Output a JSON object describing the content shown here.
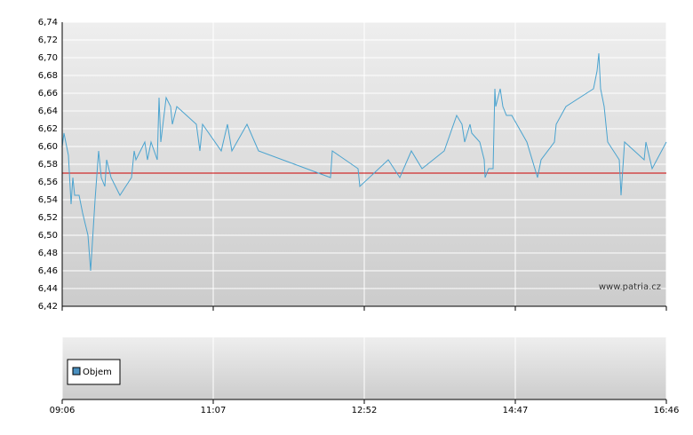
{
  "chart_data": {
    "type": "line",
    "watermark": "www.patria.cz",
    "x": [
      0,
      2,
      7,
      10,
      12,
      14,
      19,
      23,
      29,
      32,
      37,
      41,
      44,
      48,
      50,
      55,
      65,
      78,
      81,
      83,
      93,
      96,
      100,
      107,
      109,
      111,
      117,
      122,
      124,
      129,
      151,
      155,
      158,
      179,
      186,
      191,
      208,
      221,
      302,
      304,
      333,
      335,
      367,
      380,
      393,
      405,
      430,
      444,
      450,
      453,
      459,
      461,
      470,
      475,
      476,
      480,
      485,
      487,
      488,
      493,
      496,
      500,
      506,
      523,
      535,
      539,
      554,
      556,
      567,
      598,
      602,
      604,
      606,
      610,
      614,
      627,
      629,
      633,
      655,
      657,
      664,
      680
    ],
    "series": [
      {
        "color": "#4aa3cf",
        "values": [
          6.6,
          6.615,
          6.59,
          6.535,
          6.565,
          6.545,
          6.545,
          6.525,
          6.5,
          6.46,
          6.54,
          6.595,
          6.565,
          6.555,
          6.585,
          6.565,
          6.545,
          6.565,
          6.595,
          6.585,
          6.605,
          6.585,
          6.605,
          6.585,
          6.655,
          6.605,
          6.655,
          6.645,
          6.625,
          6.645,
          6.625,
          6.595,
          6.625,
          6.595,
          6.625,
          6.595,
          6.625,
          6.595,
          6.565,
          6.595,
          6.575,
          6.555,
          6.585,
          6.565,
          6.595,
          6.575,
          6.595,
          6.635,
          6.625,
          6.605,
          6.625,
          6.615,
          6.605,
          6.585,
          6.565,
          6.575,
          6.575,
          6.665,
          6.645,
          6.665,
          6.645,
          6.635,
          6.635,
          6.605,
          6.565,
          6.585,
          6.605,
          6.625,
          6.645,
          6.665,
          6.685,
          6.705,
          6.665,
          6.645,
          6.605,
          6.585,
          6.545,
          6.605,
          6.585,
          6.605,
          6.575,
          6.605
        ]
      }
    ],
    "reference_line": {
      "value": 6.57,
      "color": "#cc0000"
    },
    "xlim": [
      0,
      680
    ],
    "xticks": [
      {
        "value": 0,
        "label": "09:06"
      },
      {
        "value": 170,
        "label": "11:07"
      },
      {
        "value": 340,
        "label": "12:52"
      },
      {
        "value": 510,
        "label": "14:47"
      },
      {
        "value": 680,
        "label": "16:46"
      }
    ],
    "ylim": [
      6.42,
      6.74
    ],
    "yticks": [
      {
        "value": 6.42,
        "label": "6,42"
      },
      {
        "value": 6.44,
        "label": "6,44"
      },
      {
        "value": 6.46,
        "label": "6,46"
      },
      {
        "value": 6.48,
        "label": "6,48"
      },
      {
        "value": 6.5,
        "label": "6,50"
      },
      {
        "value": 6.52,
        "label": "6,52"
      },
      {
        "value": 6.54,
        "label": "6,54"
      },
      {
        "value": 6.56,
        "label": "6,56"
      },
      {
        "value": 6.58,
        "label": "6,58"
      },
      {
        "value": 6.6,
        "label": "6,60"
      },
      {
        "value": 6.62,
        "label": "6,62"
      },
      {
        "value": 6.64,
        "label": "6,64"
      },
      {
        "value": 6.66,
        "label": "6,66"
      },
      {
        "value": 6.68,
        "label": "6,68"
      },
      {
        "value": 6.7,
        "label": "6,70"
      },
      {
        "value": 6.72,
        "label": "6,72"
      },
      {
        "value": 6.74,
        "label": "6,74"
      }
    ],
    "grid": true,
    "volume_panel": {
      "legend": "Objem",
      "color": "#4a90c0"
    }
  }
}
